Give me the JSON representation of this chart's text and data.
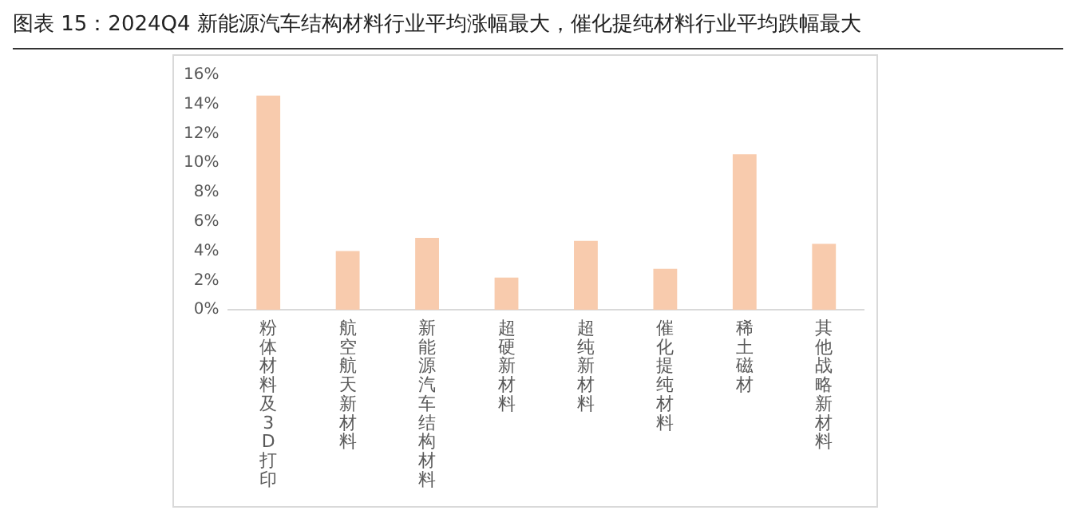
{
  "chart_data": {
    "type": "bar",
    "title": "图表 15：2024Q4 新能源汽车结构材料行业平均涨幅最大，催化提纯材料行业平均跌幅最大",
    "categories": [
      "粉体材料及3D打印",
      "航空航天新材料",
      "新能源汽车结构材料",
      "超硬新材料",
      "超纯新材料",
      "催化提纯材料",
      "稀土磁材",
      "其他战略新材料"
    ],
    "values": [
      14.6,
      4.0,
      4.9,
      2.2,
      4.7,
      2.8,
      10.6,
      4.5
    ],
    "color": "#f8cbad",
    "ylim": [
      0,
      16
    ],
    "yticks": [
      {
        "value": 0,
        "label": "0%"
      },
      {
        "value": 2,
        "label": "2%"
      },
      {
        "value": 4,
        "label": "4%"
      },
      {
        "value": 6,
        "label": "6%"
      },
      {
        "value": 8,
        "label": "8%"
      },
      {
        "value": 10,
        "label": "10%"
      },
      {
        "value": 12,
        "label": "12%"
      },
      {
        "value": 14,
        "label": "14%"
      },
      {
        "value": 16,
        "label": "16%"
      }
    ],
    "grid": false,
    "legend": false
  }
}
